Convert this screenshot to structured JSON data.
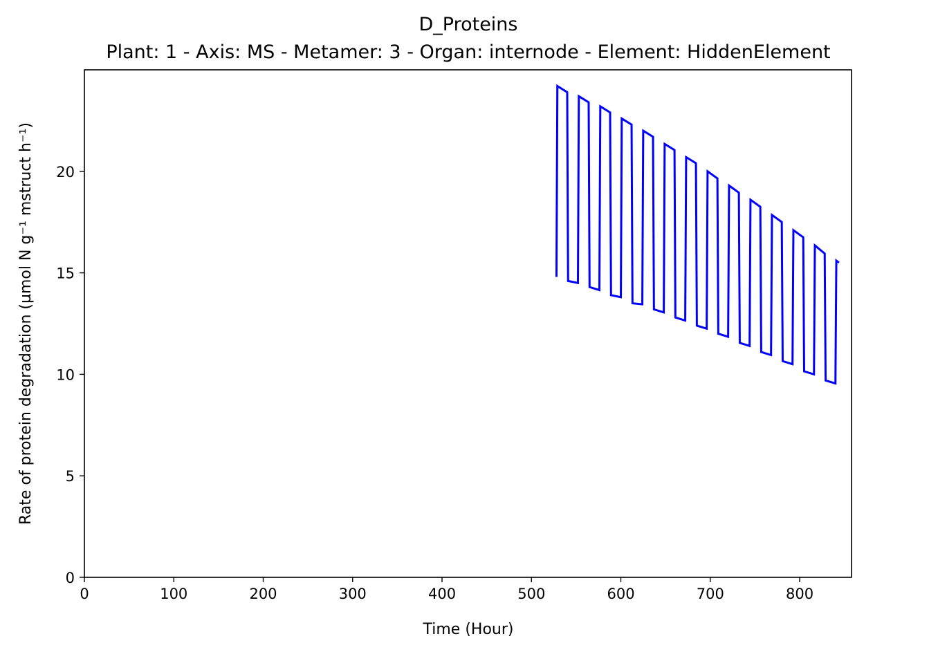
{
  "chart_data": {
    "type": "line",
    "title": "D_Proteins",
    "subtitle": "Plant: 1 - Axis: MS - Metamer: 3 - Organ: internode - Element: HiddenElement",
    "xlabel": "Time (Hour)",
    "ylabel": "Rate of protein degradation (µmol N g⁻¹ mstruct h⁻¹)",
    "xlim": [
      0,
      858
    ],
    "ylim": [
      0,
      25
    ],
    "xticks": [
      0,
      100,
      200,
      300,
      400,
      500,
      600,
      700,
      800
    ],
    "yticks": [
      0,
      5,
      10,
      15,
      20
    ],
    "grid": false,
    "series": [
      {
        "color": "#0000ff",
        "x": [
          528,
          529,
          540,
          541,
          552,
          553,
          564,
          565,
          576,
          577,
          588,
          589,
          600,
          601,
          612,
          613,
          624,
          625,
          636,
          637,
          648,
          649,
          660,
          661,
          672,
          673,
          684,
          685,
          696,
          697,
          708,
          709,
          720,
          721,
          732,
          733,
          744,
          745,
          756,
          757,
          768,
          769,
          780,
          781,
          792,
          793,
          804,
          805,
          816,
          817,
          828,
          829,
          840,
          841,
          844
        ],
        "y": [
          14.8,
          24.2,
          23.9,
          14.6,
          14.5,
          23.7,
          23.4,
          14.3,
          14.15,
          23.2,
          22.9,
          13.9,
          13.8,
          22.6,
          22.3,
          13.5,
          13.45,
          22.0,
          21.7,
          13.2,
          13.05,
          21.35,
          21.05,
          12.8,
          12.65,
          20.7,
          20.4,
          12.4,
          12.25,
          20.0,
          19.65,
          12.0,
          11.85,
          19.3,
          18.95,
          11.55,
          11.4,
          18.6,
          18.25,
          11.1,
          10.95,
          17.85,
          17.5,
          10.65,
          10.5,
          17.1,
          16.75,
          10.15,
          10.0,
          16.35,
          15.95,
          9.7,
          9.55,
          15.6,
          15.5
        ]
      }
    ]
  }
}
